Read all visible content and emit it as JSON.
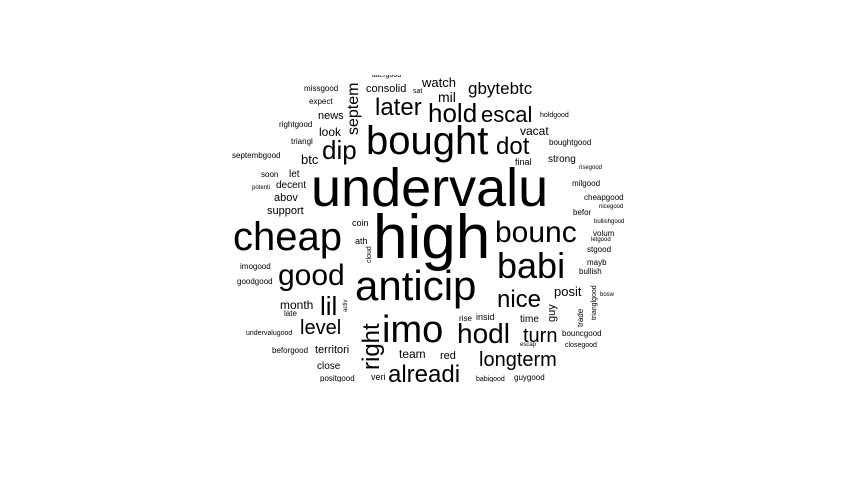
{
  "word_cloud": {
    "text_color": "#000000",
    "background_color": "#ffffff",
    "words": [
      "high",
      "undervalu",
      "cheap",
      "bought",
      "anticip",
      "imo",
      "babi",
      "bounc",
      "good",
      "hodl",
      "hold",
      "dip",
      "later",
      "right",
      "nice",
      "dot",
      "escal",
      "longterm",
      "turn",
      "lil",
      "level",
      "alreadi",
      "gbytebtc",
      "septem",
      "watch",
      "mil",
      "consolid",
      "posit",
      "month",
      "btc",
      "vacat",
      "look",
      "news",
      "abov",
      "support",
      "let",
      "decent",
      "team",
      "red",
      "time",
      "guy",
      "final",
      "strong",
      "territori",
      "close",
      "veri",
      "rise",
      "insid",
      "coin",
      "ath",
      "soon",
      "expect",
      "missgood",
      "rightgood",
      "triangl",
      "septembgood",
      "potenti",
      "imogood",
      "goodgood",
      "late",
      "undervalugood",
      "beforgood",
      "positgood",
      "babigood",
      "guygood",
      "bouncgood",
      "closegood",
      "escap",
      "holdgood",
      "boughtgood",
      "risegood",
      "milgood",
      "cheapgood",
      "nicegood",
      "bullishgood",
      "befor",
      "letgood",
      "volum",
      "stgood",
      "mayb",
      "bullish",
      "trianglgood",
      "trade",
      "bosw",
      "cloud",
      "activ",
      "sat",
      "latergood"
    ]
  }
}
